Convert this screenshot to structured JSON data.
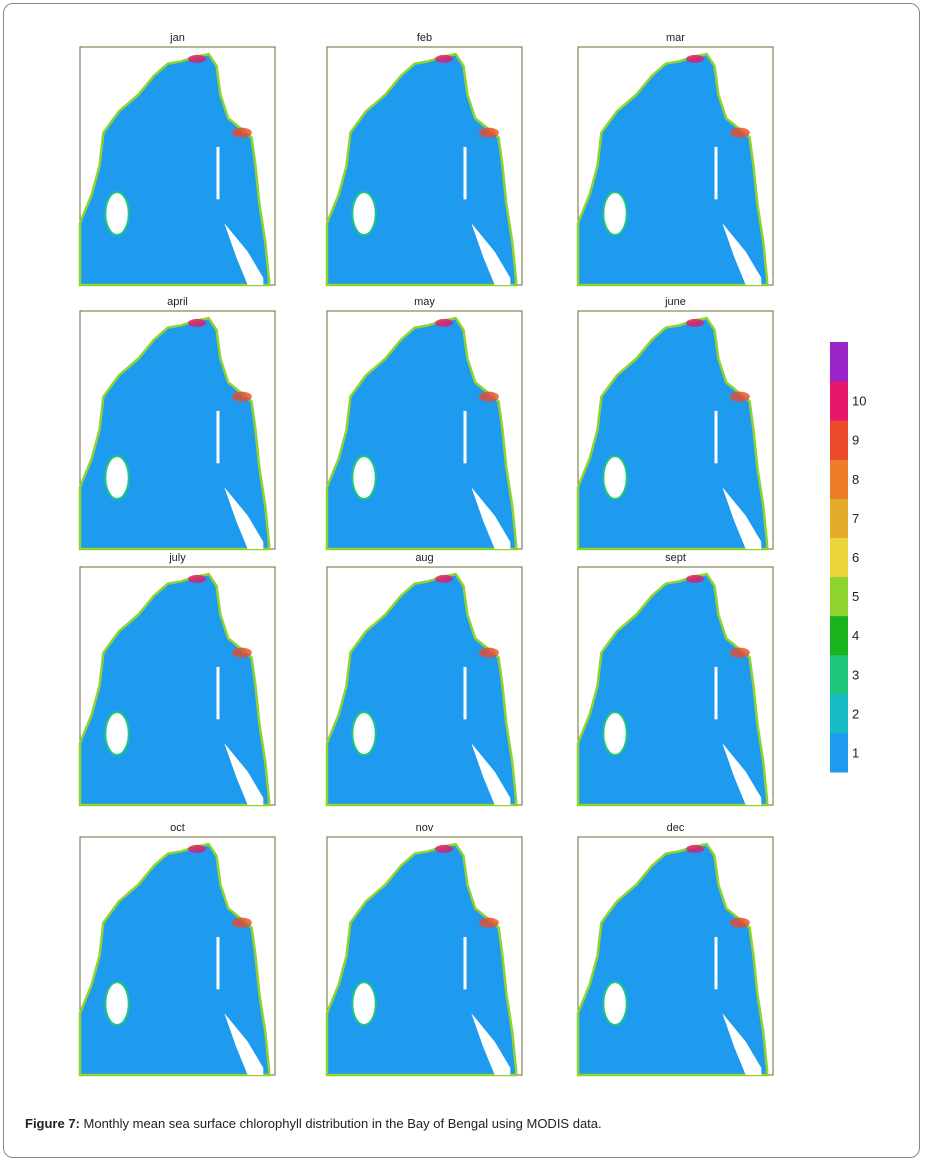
{
  "figure": {
    "panels": [
      {
        "title": "jan"
      },
      {
        "title": "feb"
      },
      {
        "title": "mar"
      },
      {
        "title": "april"
      },
      {
        "title": "may"
      },
      {
        "title": "june"
      },
      {
        "title": "july"
      },
      {
        "title": "aug"
      },
      {
        "title": "sept"
      },
      {
        "title": "oct"
      },
      {
        "title": "nov"
      },
      {
        "title": "dec"
      }
    ],
    "colorbar": {
      "labels": [
        "1",
        "2",
        "3",
        "4",
        "5",
        "6",
        "7",
        "8",
        "9",
        "10"
      ],
      "colors": [
        "#1e9bef",
        "#19bcc4",
        "#1fc77d",
        "#19b31e",
        "#8fd42e",
        "#e9d43a",
        "#e3ac2b",
        "#ee7b27",
        "#ea4a2a",
        "#e5186a",
        "#9b24c8"
      ]
    },
    "caption": {
      "label": "Figure 7:",
      "text": " Monthly mean sea surface chlorophyll distribution in the Bay of Bengal using MODIS data."
    }
  }
}
